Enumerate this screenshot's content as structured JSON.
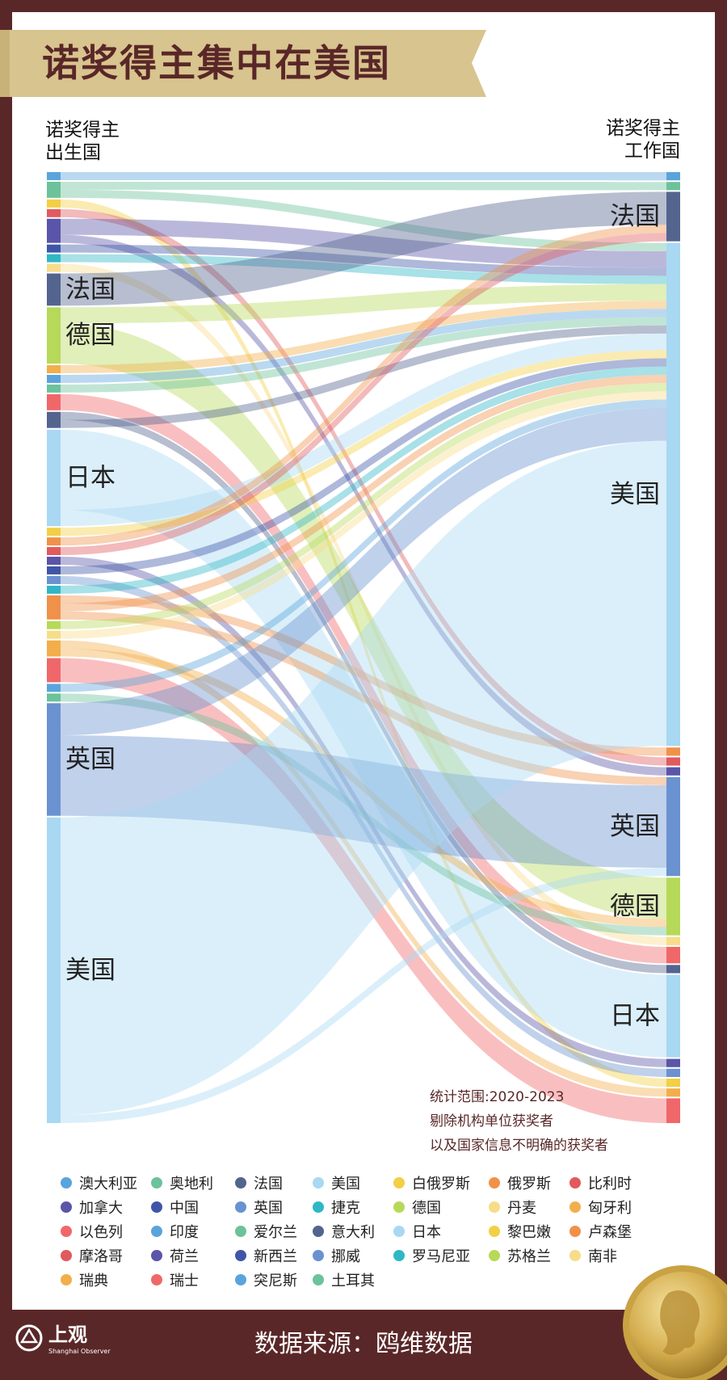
{
  "title": "诺奖得主集中在美国",
  "left_axis_title": [
    "诺奖得主",
    "出生国"
  ],
  "right_axis_title": [
    "诺奖得主",
    "工作国"
  ],
  "notes": [
    "统计范围:2020-2023",
    "剔除机构单位获奖者",
    "以及国家信息不明确的获奖者"
  ],
  "footer": {
    "source": "数据来源：鸥维数据",
    "brand_name": "上观",
    "brand_sub": "Shanghai Observer"
  },
  "colors": {
    "background": "#5a2728",
    "banner": "#d8c48e",
    "accent_dark": "#5a2728"
  },
  "legend": [
    {
      "label": "澳大利亚",
      "color": "#5aa4dc"
    },
    {
      "label": "奥地利",
      "color": "#6cc29a"
    },
    {
      "label": "法国",
      "color": "#53648f"
    },
    {
      "label": "美国",
      "color": "#a9d8f2"
    },
    {
      "label": "白俄罗斯",
      "color": "#f2cf45"
    },
    {
      "label": "俄罗斯",
      "color": "#f0914a"
    },
    {
      "label": "比利时",
      "color": "#e05a5e"
    },
    {
      "label": "加拿大",
      "color": "#5a55a8"
    },
    {
      "label": "中国",
      "color": "#3f56a8"
    },
    {
      "label": "英国",
      "color": "#6a92d0"
    },
    {
      "label": "捷克",
      "color": "#2fb7c6"
    },
    {
      "label": "德国",
      "color": "#b7d95a"
    },
    {
      "label": "丹麦",
      "color": "#f7dc8a"
    },
    {
      "label": "匈牙利",
      "color": "#f2ae4a"
    },
    {
      "label": "以色列",
      "color": "#f0676a"
    },
    {
      "label": "印度",
      "color": "#5aa4dc"
    },
    {
      "label": "爱尔兰",
      "color": "#6cc29a"
    },
    {
      "label": "意大利",
      "color": "#53648f"
    },
    {
      "label": "日本",
      "color": "#a9d8f2"
    },
    {
      "label": "黎巴嫩",
      "color": "#f2cf45"
    },
    {
      "label": "卢森堡",
      "color": "#f0914a"
    },
    {
      "label": "摩洛哥",
      "color": "#e05a5e"
    },
    {
      "label": "荷兰",
      "color": "#5a55a8"
    },
    {
      "label": "新西兰",
      "color": "#3f56a8"
    },
    {
      "label": "挪威",
      "color": "#6a92d0"
    },
    {
      "label": "罗马尼亚",
      "color": "#2fb7c6"
    },
    {
      "label": "苏格兰",
      "color": "#b7d95a"
    },
    {
      "label": "南非",
      "color": "#f7dc8a"
    },
    {
      "label": "瑞典",
      "color": "#f2ae4a"
    },
    {
      "label": "瑞士",
      "color": "#f0676a"
    },
    {
      "label": "突尼斯",
      "color": "#5aa4dc"
    },
    {
      "label": "土耳其",
      "color": "#6cc29a"
    }
  ],
  "chart_data": {
    "type": "sankey",
    "title": "诺奖得主集中在美国",
    "source_axis": "诺奖得主出生国",
    "target_axis": "诺奖得主工作国",
    "sources": [
      {
        "name": "澳大利亚",
        "value": 1,
        "color": "#5aa4dc",
        "label_shown": false
      },
      {
        "name": "奥地利",
        "value": 2,
        "color": "#6cc29a",
        "label_shown": false
      },
      {
        "name": "白俄罗斯",
        "value": 1,
        "color": "#f2cf45",
        "label_shown": false
      },
      {
        "name": "比利时",
        "value": 1,
        "color": "#e05a5e",
        "label_shown": false
      },
      {
        "name": "加拿大",
        "value": 3,
        "color": "#5a55a8",
        "label_shown": false
      },
      {
        "name": "中国",
        "value": 1,
        "color": "#3f56a8",
        "label_shown": false
      },
      {
        "name": "捷克",
        "value": 1,
        "color": "#2fb7c6",
        "label_shown": false
      },
      {
        "name": "丹麦",
        "value": 1,
        "color": "#f7dc8a",
        "label_shown": false
      },
      {
        "name": "法国",
        "value": 4,
        "color": "#53648f",
        "label_shown": true
      },
      {
        "name": "德国",
        "value": 7,
        "color": "#b7d95a",
        "label_shown": true
      },
      {
        "name": "匈牙利",
        "value": 1,
        "color": "#f2ae4a",
        "label_shown": false
      },
      {
        "name": "印度",
        "value": 1,
        "color": "#5aa4dc",
        "label_shown": false
      },
      {
        "name": "爱尔兰",
        "value": 1,
        "color": "#6cc29a",
        "label_shown": false
      },
      {
        "name": "以色列",
        "value": 2,
        "color": "#f0676a",
        "label_shown": false
      },
      {
        "name": "意大利",
        "value": 2,
        "color": "#53648f",
        "label_shown": false
      },
      {
        "name": "日本",
        "value": 12,
        "color": "#a9d8f2",
        "label_shown": true
      },
      {
        "name": "黎巴嫩",
        "value": 1,
        "color": "#f2cf45",
        "label_shown": false
      },
      {
        "name": "卢森堡",
        "value": 1,
        "color": "#f0914a",
        "label_shown": false
      },
      {
        "name": "摩洛哥",
        "value": 1,
        "color": "#e05a5e",
        "label_shown": false
      },
      {
        "name": "荷兰",
        "value": 1,
        "color": "#5a55a8",
        "label_shown": false
      },
      {
        "name": "新西兰",
        "value": 1,
        "color": "#3f56a8",
        "label_shown": false
      },
      {
        "name": "挪威",
        "value": 1,
        "color": "#6a92d0",
        "label_shown": false
      },
      {
        "name": "罗马尼亚",
        "value": 1,
        "color": "#2fb7c6",
        "label_shown": false
      },
      {
        "name": "俄罗斯",
        "value": 3,
        "color": "#f0914a",
        "label_shown": false
      },
      {
        "name": "苏格兰",
        "value": 1,
        "color": "#b7d95a",
        "label_shown": false
      },
      {
        "name": "南非",
        "value": 1,
        "color": "#f7dc8a",
        "label_shown": false
      },
      {
        "name": "瑞典",
        "value": 2,
        "color": "#f2ae4a",
        "label_shown": false
      },
      {
        "name": "瑞士",
        "value": 3,
        "color": "#f0676a",
        "label_shown": false
      },
      {
        "name": "突尼斯",
        "value": 1,
        "color": "#5aa4dc",
        "label_shown": false
      },
      {
        "name": "土耳其",
        "value": 1,
        "color": "#6cc29a",
        "label_shown": false
      },
      {
        "name": "英国",
        "value": 14,
        "color": "#6a92d0",
        "label_shown": true
      },
      {
        "name": "美国",
        "value": 38,
        "color": "#a9d8f2",
        "label_shown": true
      }
    ],
    "targets": [
      {
        "name": "澳大利亚",
        "value": 1,
        "color": "#5aa4dc",
        "label_shown": false
      },
      {
        "name": "奥地利",
        "value": 1,
        "color": "#6cc29a",
        "label_shown": false
      },
      {
        "name": "法国",
        "value": 6,
        "color": "#53648f",
        "label_shown": true
      },
      {
        "name": "美国",
        "value": 61,
        "color": "#a9d8f2",
        "label_shown": true
      },
      {
        "name": "俄罗斯",
        "value": 1,
        "color": "#f0914a",
        "label_shown": false
      },
      {
        "name": "比利时",
        "value": 1,
        "color": "#e05a5e",
        "label_shown": false
      },
      {
        "name": "加拿大",
        "value": 1,
        "color": "#5a55a8",
        "label_shown": false
      },
      {
        "name": "英国",
        "value": 12,
        "color": "#6a92d0",
        "label_shown": true
      },
      {
        "name": "德国",
        "value": 7,
        "color": "#b7d95a",
        "label_shown": true
      },
      {
        "name": "丹麦",
        "value": 1,
        "color": "#f7dc8a",
        "label_shown": false
      },
      {
        "name": "以色列",
        "value": 2,
        "color": "#f0676a",
        "label_shown": false
      },
      {
        "name": "意大利",
        "value": 1,
        "color": "#53648f",
        "label_shown": false
      },
      {
        "name": "日本",
        "value": 10,
        "color": "#a9d8f2",
        "label_shown": true
      },
      {
        "name": "荷兰",
        "value": 1,
        "color": "#5a55a8",
        "label_shown": false
      },
      {
        "name": "挪威",
        "value": 1,
        "color": "#6a92d0",
        "label_shown": false
      },
      {
        "name": "白俄罗斯",
        "value": 1,
        "color": "#f2cf45",
        "label_shown": false
      },
      {
        "name": "瑞典",
        "value": 1,
        "color": "#f2ae4a",
        "label_shown": false
      },
      {
        "name": "瑞士",
        "value": 3,
        "color": "#f0676a",
        "label_shown": false
      }
    ],
    "links": [
      {
        "source": "澳大利亚",
        "target": "澳大利亚",
        "value": 1
      },
      {
        "source": "奥地利",
        "target": "奥地利",
        "value": 1
      },
      {
        "source": "奥地利",
        "target": "美国",
        "value": 1
      },
      {
        "source": "白俄罗斯",
        "target": "白俄罗斯",
        "value": 1
      },
      {
        "source": "比利时",
        "target": "比利时",
        "value": 1
      },
      {
        "source": "加拿大",
        "target": "美国",
        "value": 2
      },
      {
        "source": "加拿大",
        "target": "加拿大",
        "value": 1
      },
      {
        "source": "中国",
        "target": "美国",
        "value": 1
      },
      {
        "source": "捷克",
        "target": "美国",
        "value": 1
      },
      {
        "source": "丹麦",
        "target": "丹麦",
        "value": 1
      },
      {
        "source": "法国",
        "target": "法国",
        "value": 4
      },
      {
        "source": "德国",
        "target": "美国",
        "value": 2
      },
      {
        "source": "德国",
        "target": "德国",
        "value": 5
      },
      {
        "source": "匈牙利",
        "target": "美国",
        "value": 1
      },
      {
        "source": "印度",
        "target": "美国",
        "value": 1
      },
      {
        "source": "爱尔兰",
        "target": "美国",
        "value": 1
      },
      {
        "source": "以色列",
        "target": "以色列",
        "value": 2
      },
      {
        "source": "意大利",
        "target": "意大利",
        "value": 1
      },
      {
        "source": "意大利",
        "target": "美国",
        "value": 1
      },
      {
        "source": "日本",
        "target": "日本",
        "value": 10
      },
      {
        "source": "日本",
        "target": "美国",
        "value": 2
      },
      {
        "source": "黎巴嫩",
        "target": "美国",
        "value": 1
      },
      {
        "source": "卢森堡",
        "target": "法国",
        "value": 1
      },
      {
        "source": "摩洛哥",
        "target": "法国",
        "value": 1
      },
      {
        "source": "荷兰",
        "target": "荷兰",
        "value": 1
      },
      {
        "source": "新西兰",
        "target": "美国",
        "value": 1
      },
      {
        "source": "挪威",
        "target": "挪威",
        "value": 1
      },
      {
        "source": "罗马尼亚",
        "target": "美国",
        "value": 1
      },
      {
        "source": "俄罗斯",
        "target": "俄罗斯",
        "value": 1
      },
      {
        "source": "俄罗斯",
        "target": "美国",
        "value": 1
      },
      {
        "source": "俄罗斯",
        "target": "英国",
        "value": 1
      },
      {
        "source": "苏格兰",
        "target": "美国",
        "value": 1
      },
      {
        "source": "南非",
        "target": "美国",
        "value": 1
      },
      {
        "source": "瑞典",
        "target": "瑞典",
        "value": 1
      },
      {
        "source": "瑞典",
        "target": "德国",
        "value": 1
      },
      {
        "source": "瑞士",
        "target": "瑞士",
        "value": 3
      },
      {
        "source": "突尼斯",
        "target": "美国",
        "value": 1
      },
      {
        "source": "土耳其",
        "target": "德国",
        "value": 1
      },
      {
        "source": "英国",
        "target": "美国",
        "value": 4
      },
      {
        "source": "英国",
        "target": "英国",
        "value": 10
      },
      {
        "source": "美国",
        "target": "美国",
        "value": 37
      },
      {
        "source": "美国",
        "target": "英国",
        "value": 1
      }
    ]
  }
}
